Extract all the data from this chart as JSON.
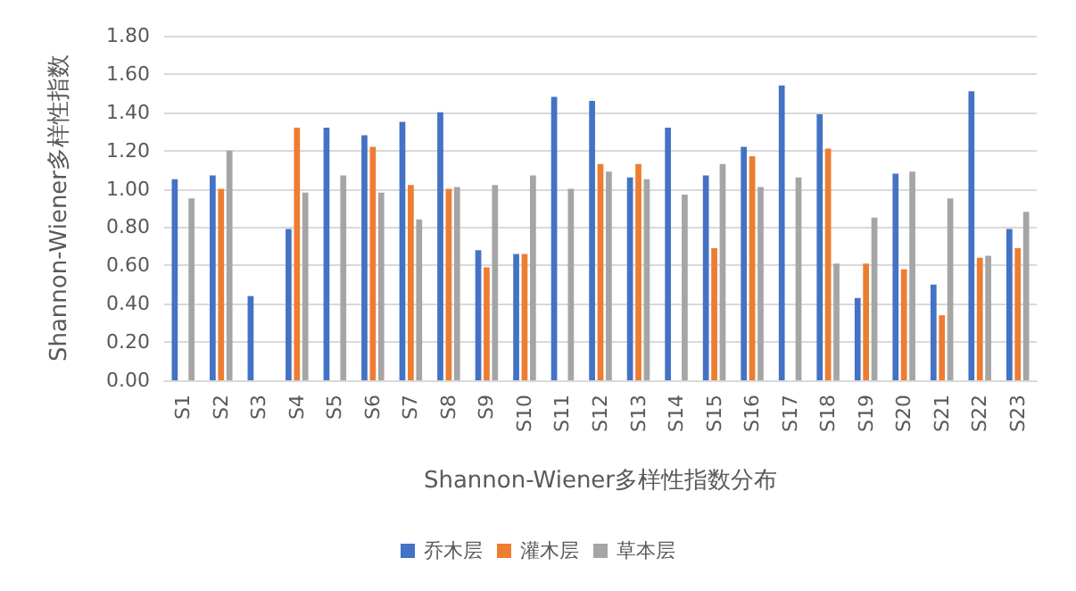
{
  "chart_data": {
    "type": "bar",
    "xlabel": "Shannon-Wiener多样性指数分布",
    "ylabel": "Shannon-Wiener多样性指数",
    "categories": [
      "S1",
      "S2",
      "S3",
      "S4",
      "S5",
      "S6",
      "S7",
      "S8",
      "S9",
      "S10",
      "S11",
      "S12",
      "S13",
      "S14",
      "S15",
      "S16",
      "S17",
      "S18",
      "S19",
      "S20",
      "S21",
      "S22",
      "S23"
    ],
    "series": [
      {
        "name": "乔木层",
        "color": "#4472c4",
        "values": [
          1.05,
          1.07,
          0.44,
          0.79,
          1.32,
          1.28,
          1.35,
          1.4,
          0.68,
          0.66,
          1.48,
          1.46,
          1.06,
          1.32,
          1.07,
          1.22,
          1.54,
          1.39,
          0.43,
          1.08,
          0.5,
          1.51,
          0.79
        ]
      },
      {
        "name": "灌木层",
        "color": "#ed7d31",
        "values": [
          null,
          1.0,
          null,
          1.32,
          null,
          1.22,
          1.02,
          1.0,
          0.59,
          0.66,
          null,
          1.13,
          1.13,
          null,
          0.69,
          1.17,
          null,
          1.21,
          0.61,
          0.58,
          0.34,
          0.64,
          0.69
        ]
      },
      {
        "name": "草本层",
        "color": "#a5a5a5",
        "values": [
          0.95,
          1.2,
          null,
          0.98,
          1.07,
          0.98,
          0.84,
          1.01,
          1.02,
          1.07,
          1.0,
          1.09,
          1.05,
          0.97,
          1.13,
          1.01,
          1.06,
          0.61,
          0.85,
          1.09,
          0.95,
          0.65,
          0.88
        ]
      }
    ],
    "ylim": [
      0,
      1.8
    ],
    "yticks": [
      {
        "value": 0,
        "label": "0.00"
      },
      {
        "value": 0.2,
        "label": "0.20"
      },
      {
        "value": 0.4,
        "label": "0.40"
      },
      {
        "value": 0.6,
        "label": "0.60"
      },
      {
        "value": 0.8,
        "label": "0.80"
      },
      {
        "value": 1.0,
        "label": "1.00"
      },
      {
        "value": 1.2,
        "label": "1.20"
      },
      {
        "value": 1.4,
        "label": "1.40"
      },
      {
        "value": 1.6,
        "label": "1.60"
      },
      {
        "value": 1.8,
        "label": "1.80"
      }
    ],
    "grid": "y",
    "legend": "bottom"
  }
}
